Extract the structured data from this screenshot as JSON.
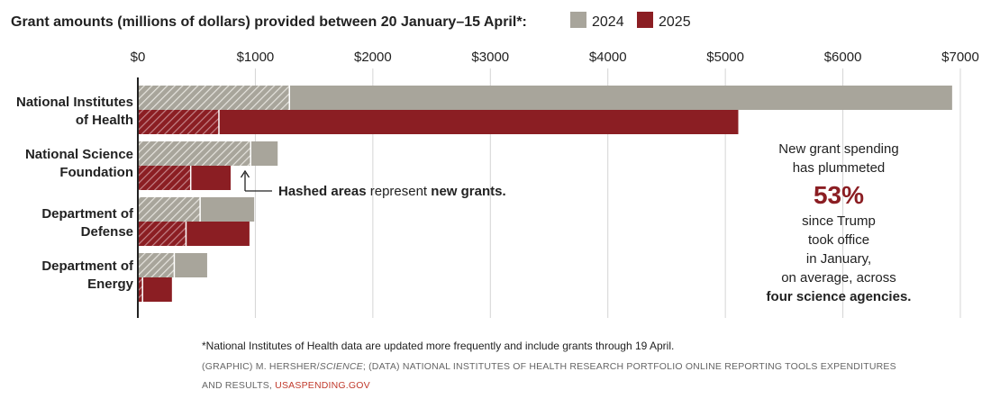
{
  "chart_data": {
    "type": "bar",
    "title": "Grant amounts (millions of dollars) provided between 20 January–15 April*:",
    "legend": [
      {
        "name": "2024",
        "color": "#a8a59b"
      },
      {
        "name": "2025",
        "color": "#8b1e23"
      }
    ],
    "x_ticks": [
      "$0",
      "$1000",
      "$2000",
      "$3000",
      "$4000",
      "$5000",
      "$6000",
      "$7000"
    ],
    "xlim": [
      0,
      7000
    ],
    "categories": [
      {
        "lines": [
          "National Institutes",
          "of Health"
        ]
      },
      {
        "lines": [
          "National Science",
          "Foundation"
        ]
      },
      {
        "lines": [
          "Department of",
          "Defense"
        ]
      },
      {
        "lines": [
          "Department of",
          "Energy"
        ]
      }
    ],
    "series": [
      {
        "name": "2024",
        "total": [
          6930,
          1190,
          990,
          590
        ],
        "new_grants": [
          1290,
          960,
          530,
          310
        ]
      },
      {
        "name": "2025",
        "total": [
          5110,
          790,
          950,
          290
        ],
        "new_grants": [
          690,
          450,
          410,
          40
        ]
      }
    ],
    "hash_annotation": {
      "bold1": "Hashed areas",
      "normal": " represent ",
      "bold2": "new grants."
    },
    "side_annotation": {
      "lines_top": [
        "New grant spending",
        "has plummeted"
      ],
      "big": "53%",
      "lines_bottom": [
        "since Trump",
        "took office",
        "in January,",
        "on average, across"
      ],
      "bold_last": "four science agencies."
    },
    "grid": true
  },
  "footnote": "*National Institutes of Health data are updated more frequently and include grants through 19 April.",
  "credit": {
    "part1": "(GRAPHIC) M. HERSHER/",
    "part1_italic": "SCIENCE",
    "part2": "; (DATA) NATIONAL INSTITUTES OF HEALTH RESEARCH PORTFOLIO ONLINE REPORTING TOOLS EXPENDITURES",
    "line2": "AND RESULTS, ",
    "line2_link": "USASPENDING.GOV",
    "link_color": "#c0392b"
  }
}
